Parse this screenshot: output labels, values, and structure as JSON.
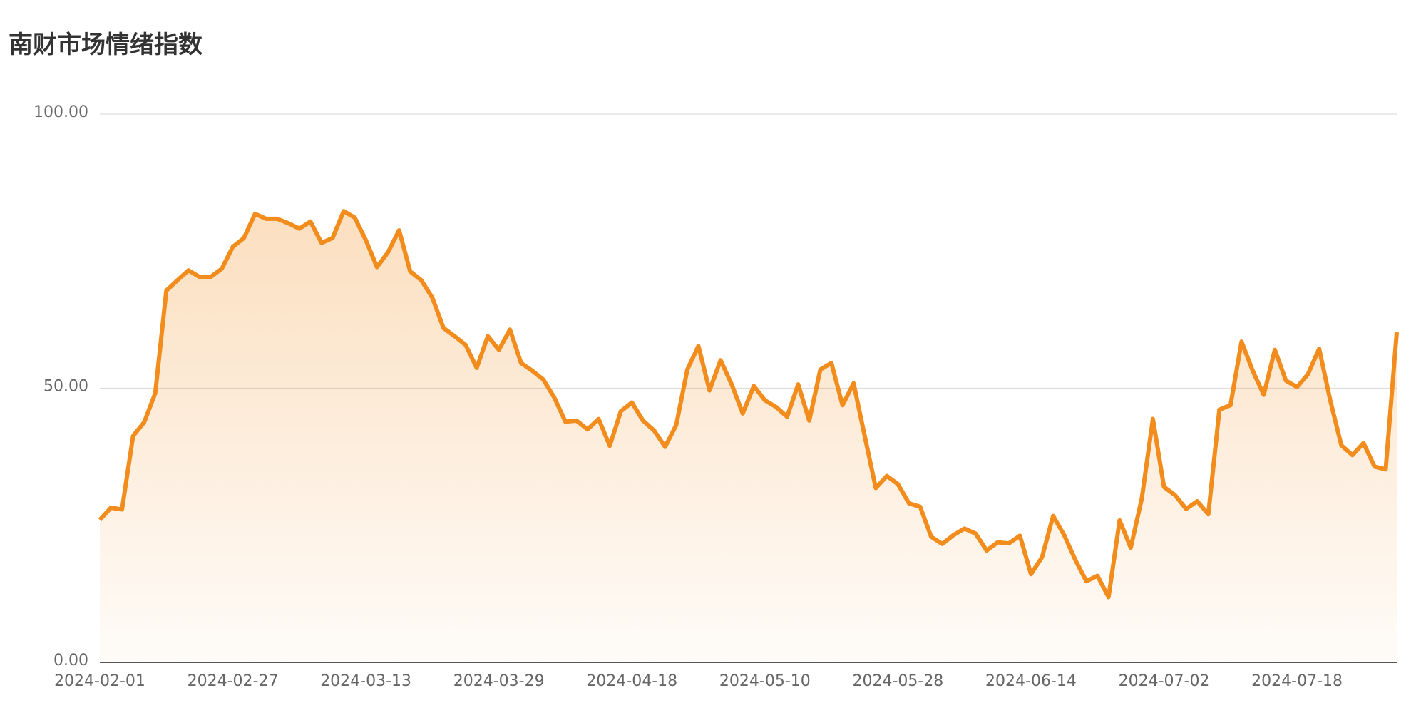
{
  "chart_data": {
    "type": "area-line",
    "title": "南财市场情绪指数",
    "categories": [
      "2024-02-01",
      null,
      null,
      null,
      null,
      null,
      null,
      null,
      null,
      null,
      null,
      null,
      "2024-02-27",
      null,
      null,
      null,
      null,
      null,
      null,
      null,
      null,
      null,
      null,
      null,
      "2024-03-13",
      null,
      null,
      null,
      null,
      null,
      null,
      null,
      null,
      null,
      null,
      null,
      "2024-03-29",
      null,
      null,
      null,
      null,
      null,
      null,
      null,
      null,
      null,
      null,
      null,
      "2024-04-18",
      null,
      null,
      null,
      null,
      null,
      null,
      null,
      null,
      null,
      null,
      null,
      "2024-05-10",
      null,
      null,
      null,
      null,
      null,
      null,
      null,
      null,
      null,
      null,
      null,
      "2024-05-28",
      null,
      null,
      null,
      null,
      null,
      null,
      null,
      null,
      null,
      null,
      null,
      "2024-06-14",
      null,
      null,
      null,
      null,
      null,
      null,
      null,
      null,
      null,
      null,
      null,
      "2024-07-02",
      null,
      null,
      null,
      null,
      null,
      null,
      null,
      null,
      null,
      null,
      null,
      "2024-07-18",
      null,
      null,
      null,
      null,
      null,
      null,
      null,
      null,
      null
    ],
    "values": [
      26.0,
      28.2,
      27.9,
      41.3,
      43.8,
      49.1,
      67.8,
      69.7,
      71.5,
      70.3,
      70.3,
      71.8,
      75.8,
      77.4,
      81.8,
      80.9,
      80.9,
      80.1,
      79.1,
      80.4,
      76.5,
      77.4,
      82.3,
      81.1,
      77.0,
      72.1,
      74.8,
      78.8,
      71.3,
      69.7,
      66.5,
      61.0,
      59.5,
      57.9,
      53.7,
      59.5,
      57.0,
      60.7,
      54.6,
      53.2,
      51.6,
      48.3,
      43.9,
      44.1,
      42.5,
      44.4,
      39.5,
      45.8,
      47.4,
      44.1,
      42.3,
      39.3,
      43.3,
      53.4,
      57.7,
      49.6,
      55.1,
      50.7,
      45.4,
      50.4,
      47.8,
      46.6,
      44.8,
      50.7,
      44.1,
      53.4,
      54.6,
      46.9,
      50.9,
      41.3,
      31.8,
      34.0,
      32.5,
      29.0,
      28.4,
      22.9,
      21.6,
      23.2,
      24.4,
      23.5,
      20.4,
      21.9,
      21.7,
      23.1,
      16.1,
      19.2,
      26.7,
      23.2,
      18.7,
      14.8,
      15.8,
      11.9,
      25.9,
      20.9,
      29.9,
      44.4,
      32.0,
      30.5,
      28.0,
      29.4,
      27.0,
      46.1,
      46.9,
      58.5,
      53.2,
      48.8,
      57.0,
      51.4,
      50.2,
      52.6,
      57.2,
      47.8,
      39.6,
      37.8,
      40.0,
      35.7,
      35.2,
      60.2
    ],
    "color": "#f28c1c",
    "ylim": [
      0,
      100
    ],
    "yticks": [
      {
        "value": 0,
        "label": "0.00"
      },
      {
        "value": 50,
        "label": "50.00"
      },
      {
        "value": 100,
        "label": "100.00"
      }
    ],
    "grid": true
  }
}
